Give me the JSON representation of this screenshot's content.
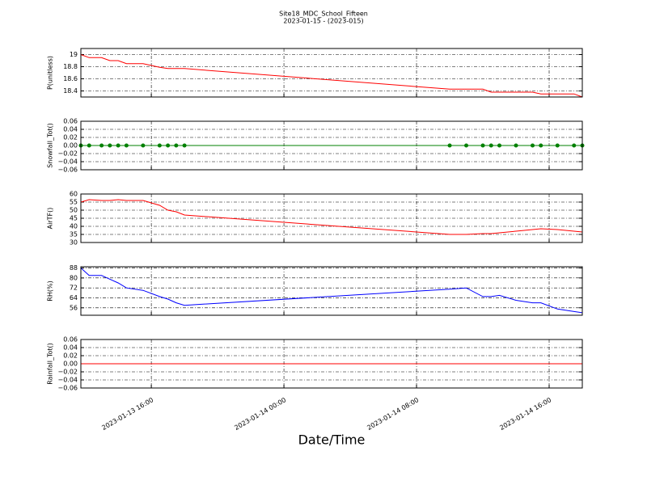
{
  "chart_data": [
    {
      "type": "line",
      "title": "Site18_MDC_School_Fifteen",
      "subtitle": "2023-01-15 - (2023-015)",
      "y_label": "P(unitless)",
      "color": "#ff0000",
      "markers": false,
      "grid": true,
      "x": [
        "2023-01-13 11:45",
        "2023-01-13 12:15",
        "2023-01-13 13:00",
        "2023-01-13 13:30",
        "2023-01-13 14:00",
        "2023-01-13 14:30",
        "2023-01-13 15:30",
        "2023-01-13 16:30",
        "2023-01-13 17:00",
        "2023-01-13 17:30",
        "2023-01-13 18:00",
        "2023-01-14 10:00",
        "2023-01-14 11:00",
        "2023-01-14 12:00",
        "2023-01-14 12:30",
        "2023-01-14 13:00",
        "2023-01-14 14:00",
        "2023-01-14 15:00",
        "2023-01-14 15:30",
        "2023-01-14 16:30",
        "2023-01-14 17:30",
        "2023-01-14 18:00"
      ],
      "values": [
        19.0,
        18.95,
        18.95,
        18.9,
        18.9,
        18.85,
        18.85,
        18.79,
        18.77,
        18.77,
        18.77,
        18.43,
        18.43,
        18.43,
        18.38,
        18.38,
        18.38,
        18.38,
        18.35,
        18.35,
        18.35,
        18.3
      ],
      "xlim": [
        "2023-01-13 11:45",
        "2023-01-14 18:00"
      ],
      "ylim": [
        18.3,
        19.1
      ],
      "yticks": [
        18.4,
        18.6,
        18.8,
        19.0
      ]
    },
    {
      "type": "line",
      "y_label": "Snowfall_Tot()",
      "color": "#008000",
      "markers": true,
      "grid": true,
      "x": [
        "2023-01-13 11:45",
        "2023-01-13 12:15",
        "2023-01-13 13:00",
        "2023-01-13 13:30",
        "2023-01-13 14:00",
        "2023-01-13 14:30",
        "2023-01-13 15:30",
        "2023-01-13 16:30",
        "2023-01-13 17:00",
        "2023-01-13 17:30",
        "2023-01-13 18:00",
        "2023-01-14 10:00",
        "2023-01-14 11:00",
        "2023-01-14 12:00",
        "2023-01-14 12:30",
        "2023-01-14 13:00",
        "2023-01-14 14:00",
        "2023-01-14 15:00",
        "2023-01-14 15:30",
        "2023-01-14 16:30",
        "2023-01-14 17:30",
        "2023-01-14 18:00"
      ],
      "values": [
        0,
        0,
        0,
        0,
        0,
        0,
        0,
        0,
        0,
        0,
        0,
        0,
        0,
        0,
        0,
        0,
        0,
        0,
        0,
        0,
        0,
        0
      ],
      "xlim": [
        "2023-01-13 11:45",
        "2023-01-14 18:00"
      ],
      "ylim": [
        -0.06,
        0.06
      ],
      "yticks": [
        {
          "value": -0.06,
          "label": "−0.06"
        },
        {
          "value": -0.04,
          "label": "−0.04"
        },
        {
          "value": -0.02,
          "label": "−0.02"
        },
        {
          "value": 0,
          "label": "0.00"
        },
        {
          "value": 0.02,
          "label": "0.02"
        },
        {
          "value": 0.04,
          "label": "0.04"
        },
        {
          "value": 0.06,
          "label": "0.06"
        }
      ]
    },
    {
      "type": "line",
      "y_label": "AirTF()",
      "color": "#ff0000",
      "markers": false,
      "grid": true,
      "x": [
        "2023-01-13 11:45",
        "2023-01-13 12:15",
        "2023-01-13 13:00",
        "2023-01-13 13:30",
        "2023-01-13 14:00",
        "2023-01-13 14:30",
        "2023-01-13 15:30",
        "2023-01-13 16:30",
        "2023-01-13 17:00",
        "2023-01-13 17:30",
        "2023-01-13 18:00",
        "2023-01-14 10:00",
        "2023-01-14 11:00",
        "2023-01-14 12:00",
        "2023-01-14 12:30",
        "2023-01-14 13:00",
        "2023-01-14 14:00",
        "2023-01-14 15:00",
        "2023-01-14 15:30",
        "2023-01-14 16:30",
        "2023-01-14 17:30",
        "2023-01-14 18:00"
      ],
      "values": [
        55,
        56.5,
        56,
        56,
        56.5,
        56,
        56,
        53,
        50,
        49,
        47,
        35,
        35,
        35.5,
        35.5,
        36,
        37,
        38,
        38.5,
        38,
        37,
        36.5
      ],
      "xlim": [
        "2023-01-13 11:45",
        "2023-01-14 18:00"
      ],
      "ylim": [
        30,
        60
      ],
      "yticks": [
        30,
        35,
        40,
        45,
        50,
        55,
        60
      ]
    },
    {
      "type": "line",
      "y_label": "RH(%)",
      "color": "#0000ff",
      "markers": false,
      "grid": true,
      "x": [
        "2023-01-13 11:45",
        "2023-01-13 12:15",
        "2023-01-13 13:00",
        "2023-01-13 13:30",
        "2023-01-13 14:00",
        "2023-01-13 14:30",
        "2023-01-13 15:30",
        "2023-01-13 16:30",
        "2023-01-13 17:00",
        "2023-01-13 17:30",
        "2023-01-13 18:00",
        "2023-01-14 10:00",
        "2023-01-14 11:00",
        "2023-01-14 12:00",
        "2023-01-14 12:30",
        "2023-01-14 13:00",
        "2023-01-14 14:00",
        "2023-01-14 15:00",
        "2023-01-14 15:30",
        "2023-01-14 16:30",
        "2023-01-14 17:30",
        "2023-01-14 18:00"
      ],
      "values": [
        88,
        82,
        82,
        79,
        76,
        72,
        70,
        65,
        63,
        60,
        58,
        71,
        72,
        65,
        65,
        66,
        62,
        60,
        60,
        55,
        53,
        52
      ],
      "xlim": [
        "2023-01-13 11:45",
        "2023-01-14 18:00"
      ],
      "ylim": [
        50,
        89
      ],
      "yticks": [
        56,
        64,
        72,
        80,
        88
      ]
    },
    {
      "type": "line",
      "y_label": "Rainfall_Tot()",
      "x_label": "Date/Time",
      "color": "#ff0000",
      "markers": false,
      "grid": true,
      "x": [
        "2023-01-13 11:45",
        "2023-01-13 12:15",
        "2023-01-13 13:00",
        "2023-01-13 13:30",
        "2023-01-13 14:00",
        "2023-01-13 14:30",
        "2023-01-13 15:30",
        "2023-01-13 16:30",
        "2023-01-13 17:00",
        "2023-01-13 17:30",
        "2023-01-13 18:00",
        "2023-01-14 10:00",
        "2023-01-14 11:00",
        "2023-01-14 12:00",
        "2023-01-14 12:30",
        "2023-01-14 13:00",
        "2023-01-14 14:00",
        "2023-01-14 15:00",
        "2023-01-14 15:30",
        "2023-01-14 16:30",
        "2023-01-14 17:30",
        "2023-01-14 18:00"
      ],
      "values": [
        0,
        0,
        0,
        0,
        0,
        0,
        0,
        0,
        0,
        0,
        0,
        0,
        0,
        0,
        0,
        0,
        0,
        0,
        0,
        0,
        0,
        0
      ],
      "xlim": [
        "2023-01-13 11:45",
        "2023-01-14 18:00"
      ],
      "ylim": [
        -0.06,
        0.06
      ],
      "yticks": [
        {
          "value": -0.06,
          "label": "−0.06"
        },
        {
          "value": -0.04,
          "label": "−0.04"
        },
        {
          "value": -0.02,
          "label": "−0.02"
        },
        {
          "value": 0,
          "label": "0.00"
        },
        {
          "value": 0.02,
          "label": "0.02"
        },
        {
          "value": 0.04,
          "label": "0.04"
        },
        {
          "value": 0.06,
          "label": "0.06"
        }
      ],
      "xticks": [
        "2023-01-13 16:00",
        "2023-01-14 00:00",
        "2023-01-14 08:00",
        "2023-01-14 16:00"
      ]
    }
  ]
}
